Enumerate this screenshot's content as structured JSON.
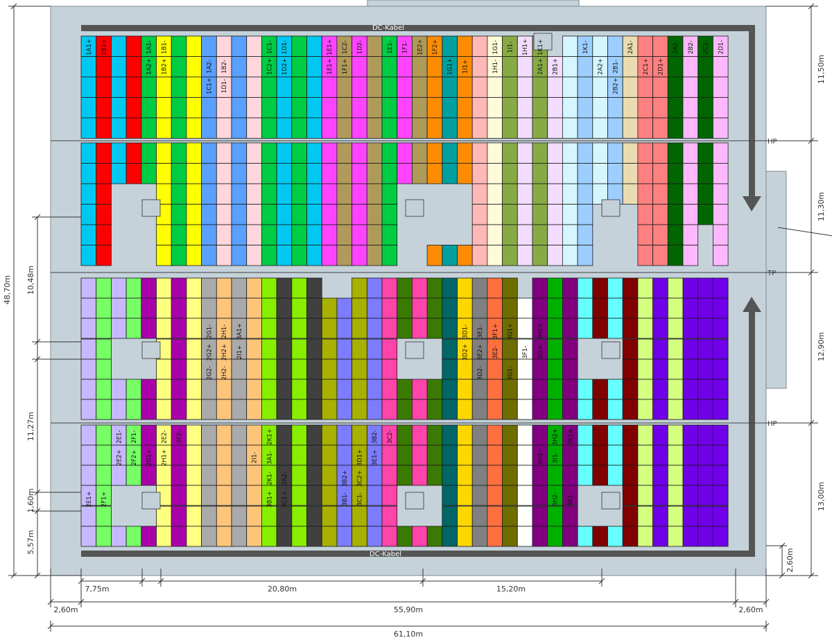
{
  "cable_top": "DC-Kabel",
  "cable_bottom": "DC-Kabel",
  "tags": {
    "hp1": "HP",
    "tp": "TP",
    "hp2": "HP"
  },
  "colors": {
    "roof": "#c5d2da",
    "outline": "#808890",
    "cable": "#555555",
    "grid": "#1a1a1a",
    "shadow": "#c3d0d8",
    "chimney": "#c5d2da"
  },
  "dims_right": [
    "11,50m",
    "11,30m",
    "12,90m",
    "13,00m",
    "2,60m"
  ],
  "dims_left": [
    "48,70m",
    "10,48m",
    "11,27m",
    "1,60m",
    "5,57m"
  ],
  "dims_bottom_row1": [
    "7,75m",
    "20,80m",
    "15,20m"
  ],
  "dims_bottom_row2": [
    "2,60m",
    "55,90m",
    "2,60m"
  ],
  "dims_bottom_row3": [
    "61,10m"
  ],
  "string_colors": {
    "1A": "#00c8f0",
    "1B": "#ff0000",
    "1C": "#5aa0ff",
    "1D": "#ffd6dc",
    "1E": "#ff44ff",
    "1F": "#b09a5a",
    "1G": "#ffb8b8",
    "1H": "#88aa44",
    "1I": "#fffbd8",
    "1K": "#f2dcff",
    "2A": "#d6f6ff",
    "2B": "#9ccfff",
    "2C": "#006600",
    "2D": "#ffb8ff",
    "2E": "#c8b8ff",
    "2F": "#77ff66",
    "2G": "#aaaaaa",
    "2H": "#fdc57a",
    "2I": "#88ee00",
    "3A": "#404040",
    "3B": "#a8b000",
    "3C": "#7c7cff",
    "3D": "#6d6d00",
    "3E": "#ff7040",
    "3F": "#800080",
    "3G": "#00b000",
    "3H": "#66ffff",
    "3I": "#800000",
    "3K": "#7000e8",
    "1Cg": "#00cc44",
    "1Ex": "#b09a5a",
    "2Ax": "#ffffdd",
    "2Cx": "#ff8080",
    "2Ex": "#bfbfbf",
    "2Gx": "#b04020",
    "2Hx": "#b0ffff",
    "2Kx": "#d4ff80",
    "3Ax": "#ff44aa",
    "3Bx": "#00a0a0",
    "3Cx": "#ffd700",
    "3Ex": "#808080",
    "3Fx": "#f0f0f0",
    "3Gx": "#0ac060"
  },
  "strings_top": [
    [
      "1A1+",
      "1B1+",
      "",
      "",
      "1A1-",
      "1B1-",
      "",
      "",
      "",
      "",
      "",
      "",
      "1C1-",
      "1D1-",
      "",
      "",
      "1E1+",
      "1C2-",
      "1D2-",
      "",
      "1E1-",
      "1F1-",
      "1E2+",
      "1F2+",
      "",
      "",
      "",
      "1G1-",
      "1I1-",
      "1H1+",
      "1K1+",
      "",
      "",
      "1K1-",
      "",
      "",
      "2A1-",
      "",
      "",
      "2A2-",
      "2B2-",
      "2C1-",
      "2D1-"
    ],
    [
      "",
      "",
      "",
      "",
      "1A2+",
      "1B2+",
      "",
      "",
      "1A2-",
      "1B2-",
      "",
      "",
      "1C2+",
      "1D2+",
      "",
      "",
      "1E1+",
      "1F1+",
      "",
      "",
      "",
      "",
      "",
      "",
      "1G1+",
      "1I1+",
      "",
      "1H1-",
      "",
      "",
      "2A1+",
      "2B1+",
      "",
      "",
      "2A2+",
      "2B1-",
      "",
      "2C1+",
      "2D1+",
      "",
      "",
      "",
      ""
    ],
    [
      "",
      "",
      "",
      "",
      "",
      "",
      "",
      "",
      "1C1+",
      "1D1-",
      "",
      "",
      "",
      "",
      "",
      "",
      "",
      "",
      "",
      "",
      "",
      "",
      "",
      "",
      "",
      "",
      "",
      "",
      "",
      "",
      "",
      "",
      "",
      "",
      "",
      "2B2+",
      "",
      "",
      "",
      "",
      "",
      "",
      ""
    ]
  ],
  "strings_bottom": [
    [
      "",
      "",
      "",
      "",
      "",
      "",
      "",
      "",
      "2G1-",
      "2H1-",
      "3A1+",
      "",
      "",
      "",
      "",
      "",
      "",
      "",
      "",
      "",
      "",
      "",
      "",
      "",
      "",
      "3D1-",
      "3E1-",
      "3F1+",
      "3G1+",
      "",
      "3H1+",
      "",
      "",
      "",
      "",
      "",
      "",
      "",
      "",
      "",
      "",
      "",
      ""
    ],
    [
      "",
      "",
      "",
      "",
      "",
      "",
      "",
      "",
      "2G2+",
      "2H2+",
      "2I1+",
      "",
      "",
      "",
      "",
      "",
      "",
      "",
      "",
      "",
      "",
      "",
      "",
      "",
      "",
      "3D2+",
      "3E2+",
      "3E2-",
      "",
      "3F1-",
      "3I1+",
      "",
      "",
      "",
      "",
      "",
      "",
      "",
      "",
      "",
      "",
      "",
      ""
    ],
    [
      "",
      "",
      "",
      "",
      "",
      "",
      "",
      "",
      "2G2-",
      "2H2-",
      "",
      "",
      "",
      "",
      "",
      "",
      "",
      "",
      "",
      "",
      "",
      "",
      "",
      "",
      "",
      "",
      "3D2-",
      "",
      "3G1-",
      "",
      "",
      "",
      "",
      "",
      "",
      "",
      "",
      "",
      "",
      "",
      "",
      "",
      ""
    ],
    [
      "",
      "",
      "2E1-",
      "2F1-",
      "",
      "2E2-",
      "2F2-",
      "",
      "",
      "",
      "",
      "",
      "2K1+",
      "",
      "",
      "",
      "",
      "",
      "",
      "3B2-",
      "3C2-",
      "",
      "",
      "",
      "",
      "",
      "",
      "",
      "",
      "",
      "",
      "3H2+",
      "3K1+",
      "",
      "",
      "",
      "",
      "",
      "",
      "",
      "",
      "",
      ""
    ],
    [
      "",
      "",
      "2E2+",
      "2F2+",
      "2G1+",
      "2H1+",
      "",
      "",
      "",
      "",
      "",
      "2I1-",
      "3A1-",
      "",
      "",
      "",
      "",
      "",
      "3D1+",
      "3E1+",
      "",
      "",
      "",
      "",
      "",
      "",
      "",
      "",
      "",
      "",
      "3H1-",
      "3I1-",
      "",
      "",
      "",
      "",
      "",
      "",
      "",
      "",
      "",
      "",
      ""
    ],
    [
      "",
      "",
      "",
      "",
      "",
      "",
      "",
      "",
      "",
      "",
      "",
      "",
      "2K1-",
      "3A2-",
      "",
      "",
      "",
      "3B2+",
      "3C2+",
      "",
      "",
      "",
      "",
      "",
      "",
      "",
      "",
      "",
      "",
      "",
      "",
      "",
      "",
      "",
      "",
      "",
      "",
      "",
      "",
      "",
      "",
      "",
      ""
    ],
    [
      "2E1+",
      "2F1+",
      "",
      "",
      "",
      "",
      "",
      "",
      "",
      "",
      "",
      "",
      "3B1+",
      "3C1+",
      "",
      "",
      "",
      "3B1-",
      "3C1-",
      "",
      "",
      "",
      "",
      "",
      "",
      "",
      "",
      "",
      "",
      "",
      "",
      "3H2-",
      "3K1-",
      "",
      "",
      "",
      "",
      "",
      "",
      "",
      "",
      "",
      ""
    ]
  ]
}
